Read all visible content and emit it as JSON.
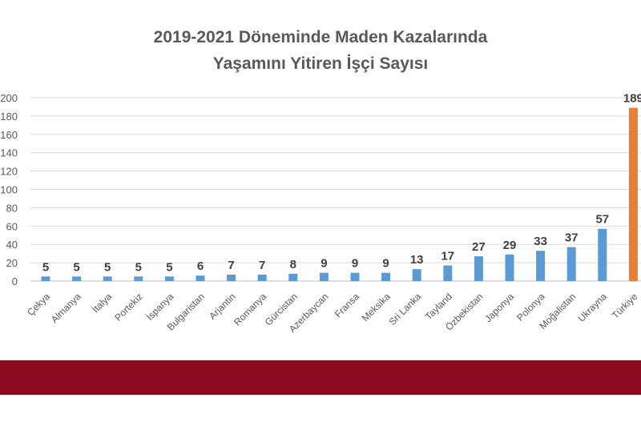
{
  "chart_data": {
    "type": "bar",
    "title": [
      "2019-2021 Döneminde Maden Kazalarında",
      "Yaşamını Yitiren İşçi Sayısı"
    ],
    "xlabel": "",
    "ylabel": "",
    "ylim": [
      0,
      200
    ],
    "yticks": [
      0,
      20,
      40,
      60,
      80,
      100,
      120,
      140,
      160,
      180,
      200
    ],
    "grid": true,
    "categories": [
      "Çekya",
      "Almanya",
      "İtalya",
      "Portekiz",
      "İspanya",
      "Bulgaristan",
      "Arjantin",
      "Romanya",
      "Gürcistan",
      "Azerbaycan",
      "Fransa",
      "Meksika",
      "Sri Lanka",
      "Tayland",
      "Özbekistan",
      "Japonya",
      "Polonya",
      "Moğalistan",
      "Ukrayna",
      "Türkiye"
    ],
    "values": [
      5,
      5,
      5,
      5,
      5,
      6,
      7,
      7,
      8,
      9,
      9,
      9,
      13,
      17,
      27,
      29,
      33,
      37,
      57,
      189
    ],
    "colors": {
      "default": "#5b9bd5",
      "highlight": "#ed7d31",
      "highlight_category": "Türkiye",
      "band": "#8b0a1f"
    }
  }
}
